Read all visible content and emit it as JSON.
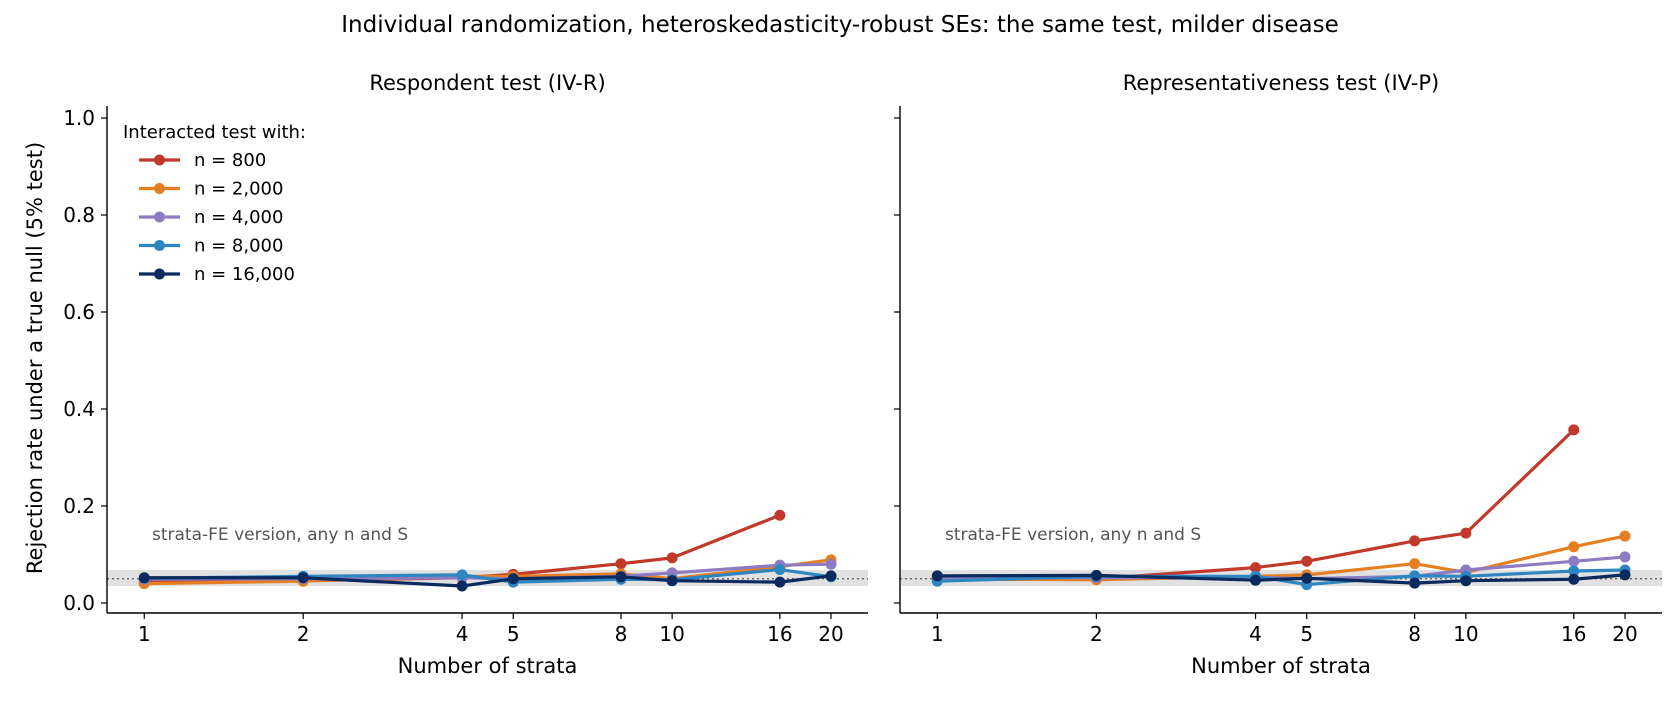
{
  "figure": {
    "title": "Individual randomization, heteroskedasticity-robust SEs: the same test, milder disease",
    "ylabel": "Rejection rate under a true null (5% test)",
    "band_label": "strata-FE version, any n and S",
    "legend_title": "Interacted test with:"
  },
  "colors": {
    "n800": "#c0392b",
    "n2000": "#e67e22",
    "n4000": "#8e7cc3",
    "n8000": "#2e86c1",
    "n16000": "#0b2a5e",
    "band": "#dcdcdc",
    "reference": "#555555"
  },
  "chart_data": [
    {
      "type": "line",
      "title": "Respondent test (IV-R)",
      "xlabel": "Number of strata",
      "ylabel": "Rejection rate under a true null (5% test)",
      "x_scale": "log",
      "x": [
        1,
        2,
        4,
        5,
        8,
        10,
        16,
        20
      ],
      "x_ticks": [
        "1",
        "2",
        "4",
        "5",
        "8",
        "10",
        "16",
        "20"
      ],
      "ylim": [
        0,
        1.0
      ],
      "y_ticks": [
        "0.0",
        "0.2",
        "0.4",
        "0.6",
        "0.8",
        "1.0"
      ],
      "reference_line": 0.05,
      "band": [
        0.035,
        0.068
      ],
      "band_label": "strata-FE version, any n and S",
      "legend_title": "Interacted test with:",
      "legend_position": "top-left",
      "series": [
        {
          "name": "n = 800",
          "color": "#c0392b",
          "values": [
            0.043,
            0.046,
            0.052,
            0.059,
            0.081,
            0.093,
            0.181,
            null
          ]
        },
        {
          "name": "n = 2,000",
          "color": "#e67e22",
          "values": [
            0.04,
            0.045,
            0.055,
            0.055,
            0.06,
            0.05,
            0.075,
            0.089
          ]
        },
        {
          "name": "n = 4,000",
          "color": "#8e7cc3",
          "values": [
            0.049,
            0.05,
            0.052,
            0.05,
            0.055,
            0.062,
            0.078,
            0.08
          ]
        },
        {
          "name": "n = 8,000",
          "color": "#2e86c1",
          "values": [
            0.051,
            0.055,
            0.058,
            0.043,
            0.049,
            0.048,
            0.069,
            0.054
          ]
        },
        {
          "name": "n = 16,000",
          "color": "#0b2a5e",
          "values": [
            0.052,
            0.052,
            0.035,
            0.05,
            0.054,
            0.046,
            0.043,
            0.056
          ]
        }
      ]
    },
    {
      "type": "line",
      "title": "Representativeness test (IV-P)",
      "xlabel": "Number of strata",
      "x_scale": "log",
      "x": [
        1,
        2,
        4,
        5,
        8,
        10,
        16,
        20
      ],
      "x_ticks": [
        "1",
        "2",
        "4",
        "5",
        "8",
        "10",
        "16",
        "20"
      ],
      "ylim": [
        0,
        1.0
      ],
      "reference_line": 0.05,
      "band": [
        0.035,
        0.068
      ],
      "band_label": "strata-FE version, any n and S",
      "series": [
        {
          "name": "n = 800",
          "color": "#c0392b",
          "values": [
            0.048,
            0.05,
            0.073,
            0.086,
            0.128,
            0.144,
            0.357,
            null
          ]
        },
        {
          "name": "n = 2,000",
          "color": "#e67e22",
          "values": [
            0.05,
            0.048,
            0.055,
            0.058,
            0.081,
            0.063,
            0.116,
            0.138
          ]
        },
        {
          "name": "n = 4,000",
          "color": "#8e7cc3",
          "values": [
            0.052,
            0.052,
            0.053,
            0.05,
            0.055,
            0.068,
            0.086,
            0.095
          ]
        },
        {
          "name": "n = 8,000",
          "color": "#2e86c1",
          "values": [
            0.045,
            0.055,
            0.055,
            0.038,
            0.056,
            0.055,
            0.066,
            0.068
          ]
        },
        {
          "name": "n = 16,000",
          "color": "#0b2a5e",
          "values": [
            0.056,
            0.057,
            0.047,
            0.051,
            0.041,
            0.046,
            0.049,
            0.058
          ]
        }
      ]
    }
  ]
}
